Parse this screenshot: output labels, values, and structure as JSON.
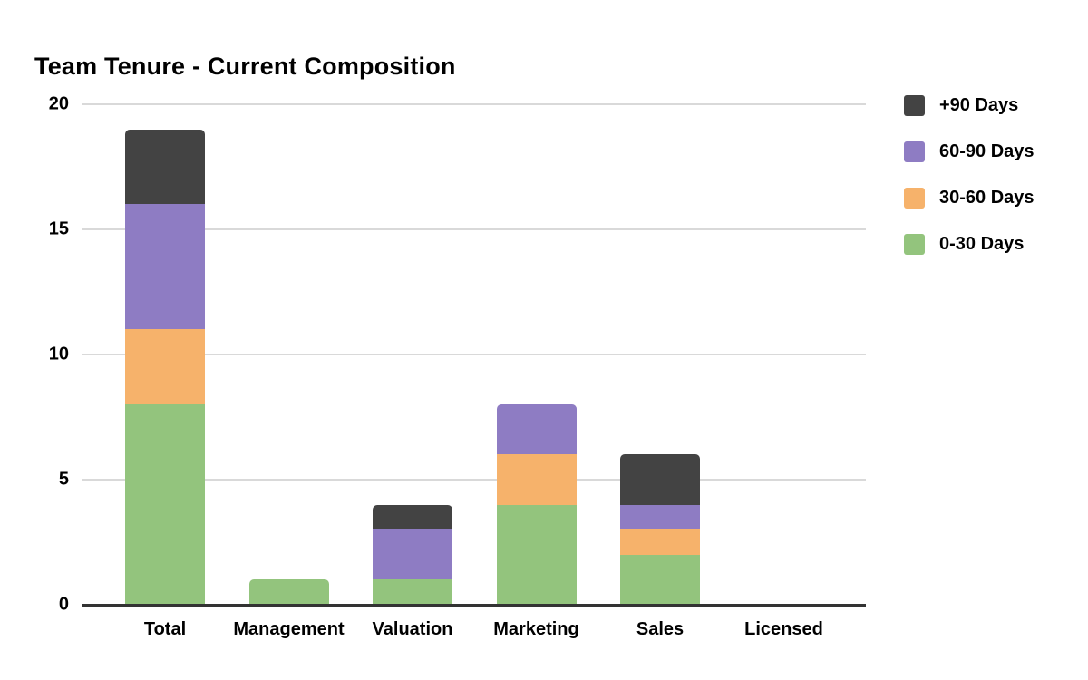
{
  "chart_data": {
    "type": "bar",
    "stacked": true,
    "title": "Team Tenure - Current Composition",
    "categories": [
      "Total",
      "Management",
      "Valuation",
      "Marketing",
      "Sales",
      "Licensed"
    ],
    "series": [
      {
        "name": "0-30 Days",
        "color": "#93c47d",
        "values": [
          8,
          1,
          1,
          4,
          2,
          0
        ]
      },
      {
        "name": "30-60 Days",
        "color": "#f6b26b",
        "values": [
          3,
          0,
          0,
          2,
          1,
          0
        ]
      },
      {
        "name": "60-90 Days",
        "color": "#8e7cc3",
        "values": [
          5,
          0,
          2,
          2,
          1,
          0
        ]
      },
      {
        "name": "+90 Days",
        "color": "#434343",
        "values": [
          3,
          0,
          1,
          0,
          2,
          0
        ]
      }
    ],
    "stack_totals": [
      19,
      1,
      4,
      8,
      6,
      0
    ],
    "y_axis": {
      "min": 0,
      "max": 20,
      "ticks": [
        0,
        5,
        10,
        15,
        20
      ]
    },
    "x_axis_labels": [
      "Total",
      "Management",
      "Valuation",
      "Marketing",
      "Sales",
      "Licensed"
    ],
    "grid": true,
    "legend": {
      "position": "right",
      "order_top_to_bottom": [
        "+90 Days",
        "60-90 Days",
        "30-60 Days",
        "0-30 Days"
      ]
    },
    "style": {
      "background": "#ffffff",
      "gridline_color": "#d9d9d9",
      "axis_line_color": "#333333",
      "text_color": "#000000"
    }
  }
}
